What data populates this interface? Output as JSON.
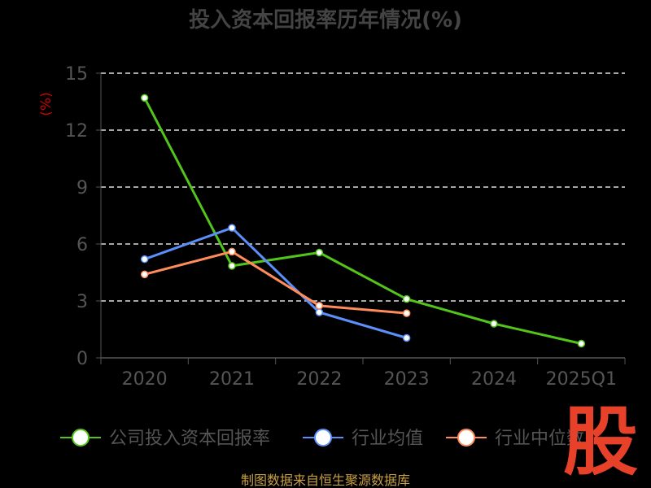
{
  "chart_data": {
    "type": "line",
    "title": "投入资本回报率历年情况(%)",
    "ylabel": "(%)",
    "xlabel": "",
    "categories": [
      "2020",
      "2021",
      "2022",
      "2023",
      "2024",
      "2025Q1"
    ],
    "ylim": [
      0,
      15
    ],
    "yticks": [
      0,
      3,
      6,
      9,
      12,
      15
    ],
    "grid": true,
    "legend_position": "bottom",
    "series": [
      {
        "name": "公司投入资本回报率",
        "color": "#52c41a",
        "values": [
          13.7,
          4.85,
          5.55,
          3.1,
          1.8,
          0.75
        ]
      },
      {
        "name": "行业均值",
        "color": "#5b8ff9",
        "values": [
          5.2,
          6.85,
          2.4,
          1.05,
          null,
          null
        ]
      },
      {
        "name": "行业中位数",
        "color": "#ff8c5a",
        "values": [
          4.4,
          5.6,
          2.75,
          2.35,
          null,
          null
        ]
      }
    ]
  },
  "footer": "制图数据来自恒生聚源数据库",
  "logo_text": "股"
}
